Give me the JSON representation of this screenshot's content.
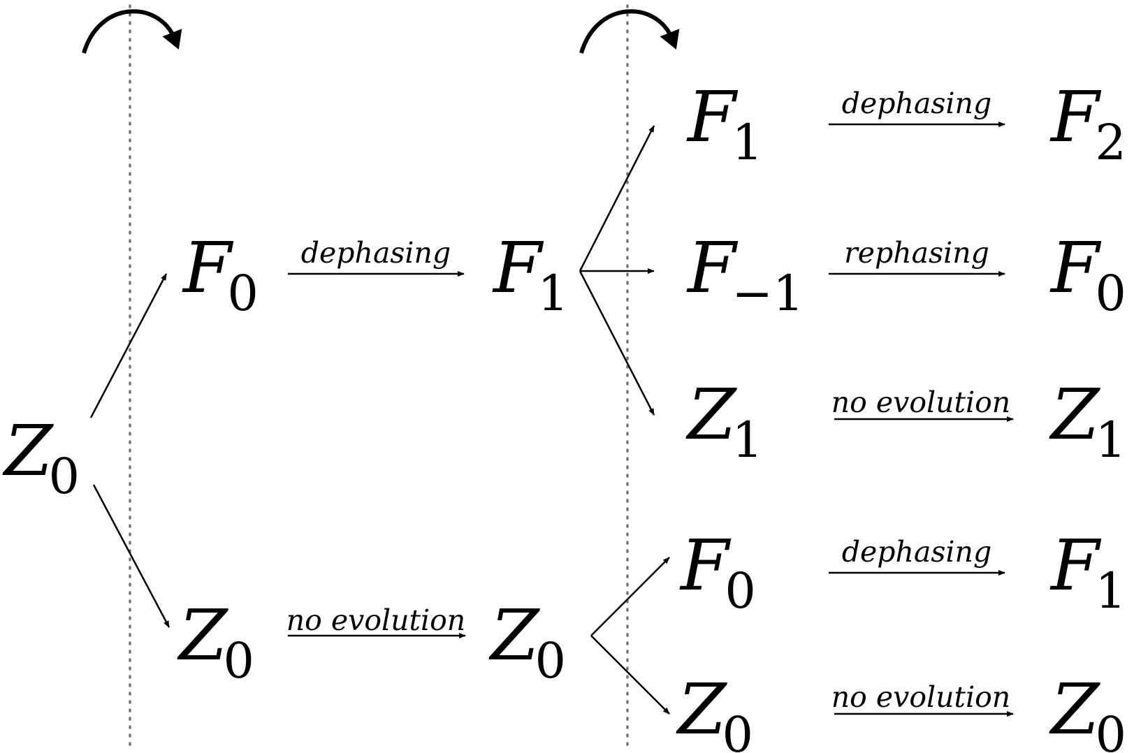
{
  "nodes": {
    "root": {
      "sym": "Z",
      "sub": "0"
    },
    "s1_top": {
      "sym": "F",
      "sub": "0"
    },
    "s1_bottom": {
      "sym": "Z",
      "sub": "0"
    },
    "s2_top": {
      "sym": "F",
      "sub": "1"
    },
    "s2_bottom": {
      "sym": "Z",
      "sub": "0"
    },
    "s3_1": {
      "sym": "F",
      "sub": "1"
    },
    "s3_2": {
      "sym": "F",
      "sub": "−1"
    },
    "s3_3": {
      "sym": "Z",
      "sub": "1"
    },
    "s3_4": {
      "sym": "F",
      "sub": "0"
    },
    "s3_5": {
      "sym": "Z",
      "sub": "0"
    },
    "s4_1": {
      "sym": "F",
      "sub": "2"
    },
    "s4_2": {
      "sym": "F",
      "sub": "0"
    },
    "s4_3": {
      "sym": "Z",
      "sub": "1"
    },
    "s4_4": {
      "sym": "F",
      "sub": "1"
    },
    "s4_5": {
      "sym": "Z",
      "sub": "0"
    }
  },
  "labels": {
    "e1_top": "dephasing",
    "e1_bottom": "no evolution",
    "e3_1": "dephasing",
    "e3_2": "rephasing",
    "e3_3": "no evolution",
    "e3_4": "dephasing",
    "e3_5": "no evolution"
  }
}
